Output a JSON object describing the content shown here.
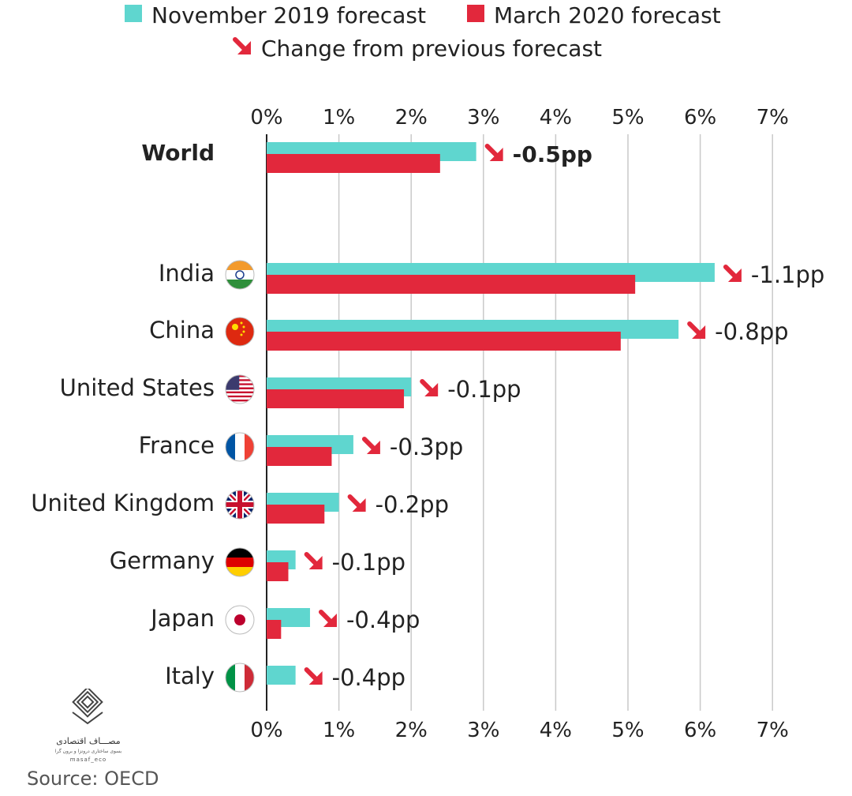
{
  "colors": {
    "nov": "#5fd6cf",
    "mar": "#e2283c",
    "arrow": "#e2283c",
    "grid": "#c9c9c9",
    "text": "#222222"
  },
  "legend": {
    "nov_label": "November 2019 forecast",
    "mar_label": "March 2020 forecast",
    "change_label": "Change from previous forecast"
  },
  "chart_data": {
    "type": "bar",
    "orientation": "horizontal",
    "xlim": [
      0,
      7
    ],
    "ticks": [
      "0%",
      "1%",
      "2%",
      "3%",
      "4%",
      "5%",
      "6%",
      "7%"
    ],
    "categories": [
      "World",
      "India",
      "China",
      "United States",
      "France",
      "United Kingdom",
      "Germany",
      "Japan",
      "Italy"
    ],
    "series": [
      {
        "name": "November 2019 forecast",
        "values": [
          2.9,
          6.2,
          5.7,
          2.0,
          1.2,
          1.0,
          0.4,
          0.6,
          0.4
        ]
      },
      {
        "name": "March 2020 forecast",
        "values": [
          2.4,
          5.1,
          4.9,
          1.9,
          0.9,
          0.8,
          0.3,
          0.2,
          0.0
        ]
      }
    ],
    "changes": [
      "-0.5pp",
      "-1.1pp",
      "-0.8pp",
      "-0.1pp",
      "-0.3pp",
      "-0.2pp",
      "-0.1pp",
      "-0.4pp",
      "-0.4pp"
    ],
    "flags": [
      "",
      "india-flag",
      "china-flag",
      "usa-flag",
      "france-flag",
      "uk-flag",
      "germany-flag",
      "japan-flag",
      "italy-flag"
    ]
  },
  "logo": {
    "name_text": "مصـــاف اقتصادی",
    "sub_text": "بسوی ساختاری درونزا و برون گرا",
    "handle": "masaf_eco"
  },
  "source": "Source: OECD"
}
